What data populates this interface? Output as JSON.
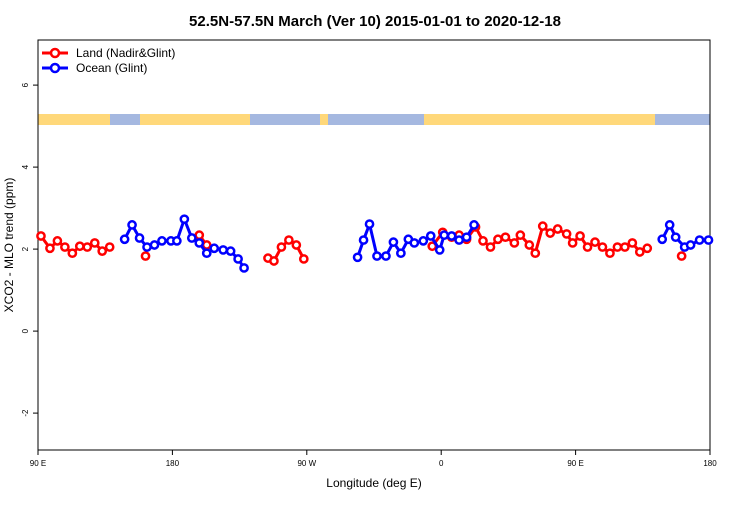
{
  "chart_data": {
    "type": "line",
    "title": "52.5N-57.5N March (Ver 10)   2015-01-01 to 2020-12-18",
    "x_label": "Longitude (deg E)",
    "y_label": "XCO2 - MLO trend (ppm)",
    "xlim": [
      -270,
      180
    ],
    "xticks": [
      {
        "value": -270,
        "label": "90 E"
      },
      {
        "value": -180,
        "label": "180"
      },
      {
        "value": -90,
        "label": "90 W"
      },
      0,
      {
        "value": 90,
        "label": "90 E"
      },
      {
        "value": 180,
        "label": "180"
      }
    ],
    "ylim": [
      -2.9,
      7.1
    ],
    "yticks": [
      -2,
      0,
      2,
      4,
      6
    ],
    "legend": "top-left",
    "series": [
      {
        "name": "Land (Nadir&Glint)",
        "color": "#ff0000",
        "x": [
          -268,
          -262,
          -257,
          -252,
          -247,
          -242,
          -237,
          -232,
          -227,
          -222,
          null,
          -198,
          null,
          -162,
          -157,
          null,
          -116,
          -112,
          -107,
          -102,
          -97,
          -92,
          null,
          -6,
          1,
          7,
          12,
          17,
          23,
          28,
          33,
          38,
          43,
          49,
          53,
          59,
          63,
          68,
          73,
          78,
          84,
          88,
          93,
          98,
          103,
          108,
          113,
          118,
          123,
          128,
          133,
          138,
          null,
          161
        ],
        "values": [
          2.32,
          2.02,
          2.2,
          2.05,
          1.9,
          2.07,
          2.05,
          2.15,
          1.95,
          2.05,
          null,
          1.83,
          null,
          2.34,
          2.1,
          null,
          1.78,
          1.71,
          2.05,
          2.22,
          2.1,
          1.76,
          null,
          2.07,
          2.41,
          2.29,
          2.34,
          2.24,
          2.54,
          2.2,
          2.05,
          2.24,
          2.29,
          2.15,
          2.34,
          2.1,
          1.9,
          2.56,
          2.39,
          2.49,
          2.37,
          2.15,
          2.32,
          2.05,
          2.17,
          2.05,
          1.9,
          2.05,
          2.05,
          2.15,
          1.93,
          2.02,
          null,
          1.83
        ]
      },
      {
        "name": "Ocean (Glint)",
        "color": "#0000ff",
        "x": [
          -212,
          -207,
          -202,
          -197,
          -192,
          -187,
          -181,
          -177,
          -172,
          -167,
          -162,
          -157,
          -152,
          -146,
          -141,
          -136,
          -132,
          null,
          -56,
          -52,
          -48,
          -43,
          -37,
          -32,
          -27,
          -22,
          -18,
          -12,
          -7,
          -1,
          2,
          7,
          12,
          17,
          22,
          null,
          148,
          153,
          157,
          163,
          167,
          173,
          179
        ],
        "values": [
          2.24,
          2.59,
          2.27,
          2.05,
          2.1,
          2.2,
          2.2,
          2.2,
          2.73,
          2.27,
          2.15,
          1.9,
          2.02,
          1.98,
          1.95,
          1.76,
          1.54,
          null,
          1.8,
          2.22,
          2.61,
          1.83,
          1.83,
          2.17,
          1.9,
          2.24,
          2.15,
          2.2,
          2.32,
          1.98,
          2.34,
          2.32,
          2.22,
          2.29,
          2.59,
          null,
          2.24,
          2.59,
          2.29,
          2.05,
          2.1,
          2.22,
          2.22
        ]
      }
    ]
  }
}
